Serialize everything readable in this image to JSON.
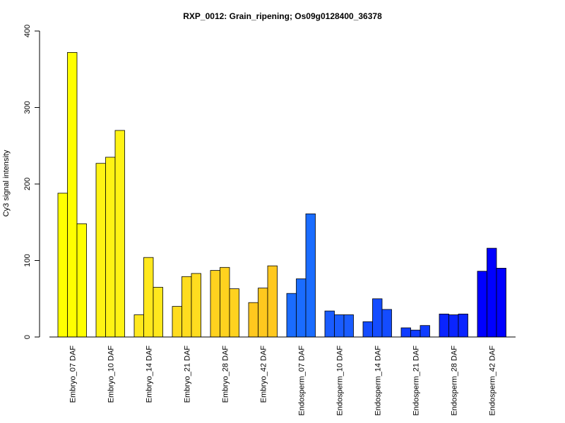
{
  "chart_data": {
    "type": "bar",
    "title": "RXP_0012: Grain_ripening; Os09g0128400_36378",
    "ylabel": "Cy3 signal intensity",
    "xlabel": "",
    "ylim": [
      0,
      400
    ],
    "yticks": [
      0,
      100,
      200,
      300,
      400
    ],
    "grid": false,
    "categories": [
      "Embryo_07 DAF",
      "Embryo_10 DAF",
      "Embryo_14 DAF",
      "Embryo_21 DAF",
      "Embryo_28 DAF",
      "Embryo_42 DAF",
      "Endosperm_07 DAF",
      "Endosperm_10 DAF",
      "Endosperm_14 DAF",
      "Endosperm_21 DAF",
      "Endosperm_28 DAF",
      "Endosperm_42 DAF"
    ],
    "colors": [
      "#ffff00",
      "#fff314",
      "#ffe81d",
      "#ffdc1f",
      "#ffd21f",
      "#ffc81e",
      "#1a6cff",
      "#1a5cff",
      "#144cff",
      "#0f3cff",
      "#0a24ff",
      "#0000ff"
    ],
    "values": [
      [
        188,
        372,
        148
      ],
      [
        227,
        235,
        270
      ],
      [
        29,
        104,
        65
      ],
      [
        40,
        79,
        83
      ],
      [
        87,
        91,
        63
      ],
      [
        45,
        64,
        93
      ],
      [
        57,
        76,
        161
      ],
      [
        34,
        29,
        29
      ],
      [
        20,
        50,
        36
      ],
      [
        12,
        9,
        15
      ],
      [
        30,
        29,
        30
      ],
      [
        86,
        116,
        90
      ]
    ]
  }
}
